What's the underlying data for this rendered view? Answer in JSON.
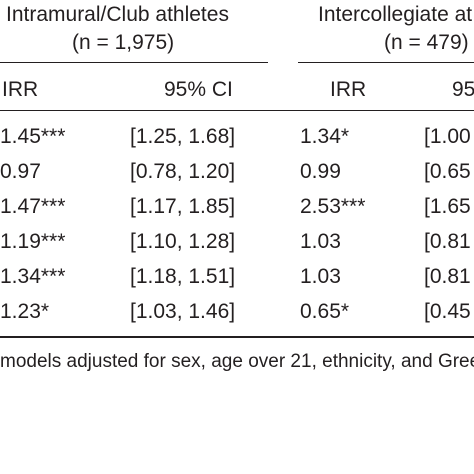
{
  "groups": [
    {
      "title": "Intramural/Club athletes",
      "n": "(n = 1,975)"
    },
    {
      "title": "Intercollegiate at",
      "n": "(n = 479)"
    }
  ],
  "columns": {
    "g1_irr": "IRR",
    "g1_ci": "95% CI",
    "g2_irr": "IRR",
    "g2_ci": "95"
  },
  "rows": [
    {
      "g1_irr": "1.45***",
      "g1_ci": "[1.25, 1.68]",
      "g2_irr": "1.34*",
      "g2_ci": "[1.00"
    },
    {
      "g1_irr": "0.97",
      "g1_ci": "[0.78, 1.20]",
      "g2_irr": "0.99",
      "g2_ci": "[0.65"
    },
    {
      "g1_irr": "1.47***",
      "g1_ci": "[1.17, 1.85]",
      "g2_irr": "2.53***",
      "g2_ci": "[1.65"
    },
    {
      "g1_irr": "1.19***",
      "g1_ci": "[1.10, 1.28]",
      "g2_irr": "1.03",
      "g2_ci": "[0.81"
    },
    {
      "g1_irr": "1.34***",
      "g1_ci": "[1.18, 1.51]",
      "g2_irr": "1.03",
      "g2_ci": "[0.81"
    },
    {
      "g1_irr": "1.23*",
      "g1_ci": "[1.03, 1.46]",
      "g2_irr": "0.65*",
      "g2_ci": "[0.45"
    }
  ],
  "footnote": "models adjusted for sex, age over 21, ethnicity, and Gree"
}
